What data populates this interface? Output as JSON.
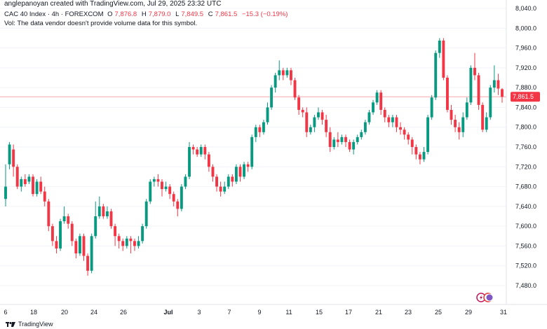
{
  "header": {
    "creator": "anglepanoyan created with TradingView.com, Jul 29, 2025 23:32 UTC",
    "symbol": "CAC 40 Index · 4h · FOREXCOM",
    "o_label": "O",
    "o_value": "7,876.8",
    "h_label": "H",
    "h_value": "7,879.0",
    "l_label": "L",
    "l_value": "7,849.5",
    "c_label": "C",
    "c_value": "7,861.5",
    "change": "−15.3 (−0.19%)",
    "volume_note": "Vol: The data vendor doesn't provide volume data for this symbol."
  },
  "footer": {
    "brand": "TradingView"
  },
  "colors": {
    "up": "#089981",
    "down": "#f23645",
    "price_tag": "#f23645",
    "price_line": "#f7a8ae"
  },
  "chart_data": {
    "type": "candlestick",
    "y_axis": {
      "range": [
        7460,
        8045
      ],
      "ticks": [
        "7,480.0",
        "7,520.0",
        "7,560.0",
        "7,600.0",
        "7,640.0",
        "7,680.0",
        "7,720.0",
        "7,760.0",
        "7,800.0",
        "7,840.0",
        "7,880.0",
        "7,920.0",
        "7,960.0",
        "8,000.0",
        "8,040.0"
      ],
      "tick_values": [
        7480,
        7520,
        7560,
        7600,
        7640,
        7680,
        7720,
        7760,
        7800,
        7840,
        7880,
        7920,
        7960,
        8000,
        8040
      ]
    },
    "x_axis": {
      "ticks": [
        "6",
        "18",
        "20",
        "24",
        "26",
        "Jul",
        "3",
        "7",
        "9",
        "11",
        "15",
        "17",
        "21",
        "23",
        "25",
        "29",
        "31"
      ]
    },
    "last_price": {
      "value": 7861.5,
      "label": "7,861.5"
    },
    "candles": [
      [
        7655,
        7680,
        7640,
        7725
      ],
      [
        7725,
        7765,
        7715,
        7770
      ],
      [
        7755,
        7720,
        7700,
        7765
      ],
      [
        7720,
        7680,
        7675,
        7725
      ],
      [
        7680,
        7695,
        7670,
        7700
      ],
      [
        7695,
        7685,
        7680,
        7705
      ],
      [
        7690,
        7700,
        7685,
        7705
      ],
      [
        7700,
        7665,
        7660,
        7705
      ],
      [
        7665,
        7690,
        7660,
        7695
      ],
      [
        7690,
        7670,
        7665,
        7700
      ],
      [
        7670,
        7650,
        7640,
        7680
      ],
      [
        7650,
        7600,
        7590,
        7655
      ],
      [
        7600,
        7570,
        7560,
        7605
      ],
      [
        7570,
        7555,
        7545,
        7580
      ],
      [
        7555,
        7610,
        7550,
        7615
      ],
      [
        7610,
        7620,
        7605,
        7640
      ],
      [
        7620,
        7605,
        7595,
        7625
      ],
      [
        7605,
        7570,
        7560,
        7610
      ],
      [
        7570,
        7545,
        7535,
        7575
      ],
      [
        7545,
        7580,
        7540,
        7585
      ],
      [
        7580,
        7540,
        7530,
        7585
      ],
      [
        7540,
        7510,
        7500,
        7545
      ],
      [
        7510,
        7580,
        7505,
        7585
      ],
      [
        7580,
        7620,
        7575,
        7650
      ],
      [
        7620,
        7640,
        7615,
        7660
      ],
      [
        7640,
        7620,
        7615,
        7645
      ],
      [
        7620,
        7630,
        7615,
        7640
      ],
      [
        7630,
        7600,
        7595,
        7635
      ],
      [
        7600,
        7580,
        7560,
        7605
      ],
      [
        7580,
        7570,
        7555,
        7585
      ],
      [
        7570,
        7560,
        7550,
        7575
      ],
      [
        7560,
        7575,
        7555,
        7580
      ],
      [
        7575,
        7570,
        7545,
        7580
      ],
      [
        7570,
        7560,
        7550,
        7575
      ],
      [
        7560,
        7570,
        7555,
        7580
      ],
      [
        7570,
        7600,
        7565,
        7605
      ],
      [
        7600,
        7650,
        7595,
        7655
      ],
      [
        7650,
        7690,
        7645,
        7695
      ],
      [
        7690,
        7695,
        7680,
        7700
      ],
      [
        7695,
        7690,
        7680,
        7705
      ],
      [
        7690,
        7675,
        7660,
        7695
      ],
      [
        7675,
        7680,
        7670,
        7690
      ],
      [
        7680,
        7665,
        7655,
        7685
      ],
      [
        7665,
        7650,
        7640,
        7670
      ],
      [
        7650,
        7635,
        7620,
        7655
      ],
      [
        7635,
        7680,
        7630,
        7685
      ],
      [
        7680,
        7700,
        7675,
        7705
      ],
      [
        7700,
        7760,
        7695,
        7770
      ],
      [
        7760,
        7755,
        7745,
        7765
      ],
      [
        7755,
        7745,
        7740,
        7760
      ],
      [
        7745,
        7760,
        7740,
        7765
      ],
      [
        7760,
        7745,
        7735,
        7765
      ],
      [
        7745,
        7720,
        7710,
        7750
      ],
      [
        7720,
        7700,
        7690,
        7725
      ],
      [
        7700,
        7680,
        7670,
        7705
      ],
      [
        7680,
        7670,
        7660,
        7690
      ],
      [
        7670,
        7680,
        7665,
        7690
      ],
      [
        7680,
        7700,
        7675,
        7705
      ],
      [
        7700,
        7690,
        7680,
        7705
      ],
      [
        7690,
        7720,
        7685,
        7725
      ],
      [
        7720,
        7700,
        7690,
        7725
      ],
      [
        7700,
        7725,
        7695,
        7730
      ],
      [
        7725,
        7720,
        7710,
        7730
      ],
      [
        7720,
        7780,
        7715,
        7785
      ],
      [
        7780,
        7800,
        7770,
        7805
      ],
      [
        7800,
        7790,
        7780,
        7805
      ],
      [
        7790,
        7810,
        7785,
        7815
      ],
      [
        7810,
        7840,
        7805,
        7850
      ],
      [
        7840,
        7880,
        7835,
        7885
      ],
      [
        7880,
        7905,
        7870,
        7910
      ],
      [
        7905,
        7915,
        7895,
        7935
      ],
      [
        7915,
        7905,
        7895,
        7920
      ],
      [
        7905,
        7915,
        7900,
        7920
      ],
      [
        7915,
        7895,
        7885,
        7920
      ],
      [
        7895,
        7860,
        7855,
        7900
      ],
      [
        7860,
        7835,
        7825,
        7865
      ],
      [
        7835,
        7830,
        7820,
        7840
      ],
      [
        7830,
        7790,
        7780,
        7840
      ],
      [
        7790,
        7800,
        7785,
        7805
      ],
      [
        7800,
        7820,
        7790,
        7825
      ],
      [
        7820,
        7830,
        7815,
        7840
      ],
      [
        7830,
        7815,
        7805,
        7835
      ],
      [
        7815,
        7790,
        7780,
        7825
      ],
      [
        7790,
        7760,
        7750,
        7800
      ],
      [
        7760,
        7775,
        7755,
        7780
      ],
      [
        7775,
        7770,
        7760,
        7790
      ],
      [
        7770,
        7780,
        7765,
        7785
      ],
      [
        7780,
        7770,
        7760,
        7785
      ],
      [
        7770,
        7755,
        7750,
        7775
      ],
      [
        7755,
        7770,
        7745,
        7775
      ],
      [
        7770,
        7780,
        7765,
        7785
      ],
      [
        7780,
        7790,
        7775,
        7795
      ],
      [
        7790,
        7810,
        7785,
        7815
      ],
      [
        7810,
        7830,
        7805,
        7835
      ],
      [
        7830,
        7850,
        7825,
        7855
      ],
      [
        7850,
        7870,
        7845,
        7875
      ],
      [
        7870,
        7835,
        7825,
        7875
      ],
      [
        7835,
        7820,
        7810,
        7840
      ],
      [
        7820,
        7810,
        7800,
        7825
      ],
      [
        7810,
        7820,
        7800,
        7825
      ],
      [
        7820,
        7800,
        7790,
        7825
      ],
      [
        7800,
        7795,
        7785,
        7810
      ],
      [
        7795,
        7785,
        7775,
        7800
      ],
      [
        7785,
        7775,
        7765,
        7790
      ],
      [
        7775,
        7760,
        7745,
        7780
      ],
      [
        7760,
        7745,
        7735,
        7765
      ],
      [
        7745,
        7735,
        7725,
        7750
      ],
      [
        7735,
        7750,
        7730,
        7760
      ],
      [
        7750,
        7820,
        7745,
        7825
      ],
      [
        7820,
        7860,
        7815,
        7865
      ],
      [
        7860,
        7950,
        7855,
        7955
      ],
      [
        7950,
        7975,
        7940,
        7980
      ],
      [
        7975,
        7900,
        7895,
        7980
      ],
      [
        7900,
        7835,
        7830,
        7905
      ],
      [
        7835,
        7815,
        7805,
        7845
      ],
      [
        7815,
        7800,
        7790,
        7825
      ],
      [
        7800,
        7790,
        7775,
        7810
      ],
      [
        7790,
        7820,
        7780,
        7830
      ],
      [
        7820,
        7850,
        7815,
        7860
      ],
      [
        7850,
        7920,
        7845,
        7925
      ],
      [
        7920,
        7905,
        7895,
        7950
      ],
      [
        7905,
        7845,
        7835,
        7910
      ],
      [
        7845,
        7795,
        7790,
        7850
      ],
      [
        7795,
        7820,
        7790,
        7830
      ],
      [
        7820,
        7880,
        7815,
        7885
      ],
      [
        7880,
        7895,
        7870,
        7925
      ],
      [
        7895,
        7878,
        7865,
        7908
      ],
      [
        7876.8,
        7861.5,
        7849.5,
        7879.0
      ]
    ]
  }
}
